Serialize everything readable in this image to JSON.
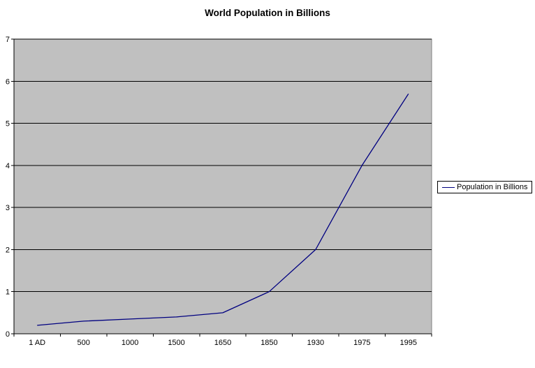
{
  "title": "World Population in Billions",
  "legend": {
    "label": "Population in Billions"
  },
  "chart_data": {
    "type": "line",
    "title": "World Population in Billions",
    "categories": [
      "1 AD",
      "500",
      "1000",
      "1500",
      "1650",
      "1850",
      "1930",
      "1975",
      "1995"
    ],
    "series": [
      {
        "name": "Population in Billions",
        "values": [
          0.2,
          0.3,
          0.35,
          0.4,
          0.5,
          1.0,
          2.0,
          4.0,
          5.7
        ]
      }
    ],
    "xlabel": "",
    "ylabel": "",
    "ylim": [
      0,
      7
    ],
    "y_ticks": [
      0,
      1,
      2,
      3,
      4,
      5,
      6,
      7
    ],
    "grid": "horizontal",
    "legend_position": "right",
    "colors": {
      "line": "#000080",
      "plot_background": "#C0C0C0",
      "plot_border": "#808080",
      "gridline": "#000000",
      "axis": "#000000",
      "background": "#FFFFFF",
      "text": "#000000"
    }
  }
}
